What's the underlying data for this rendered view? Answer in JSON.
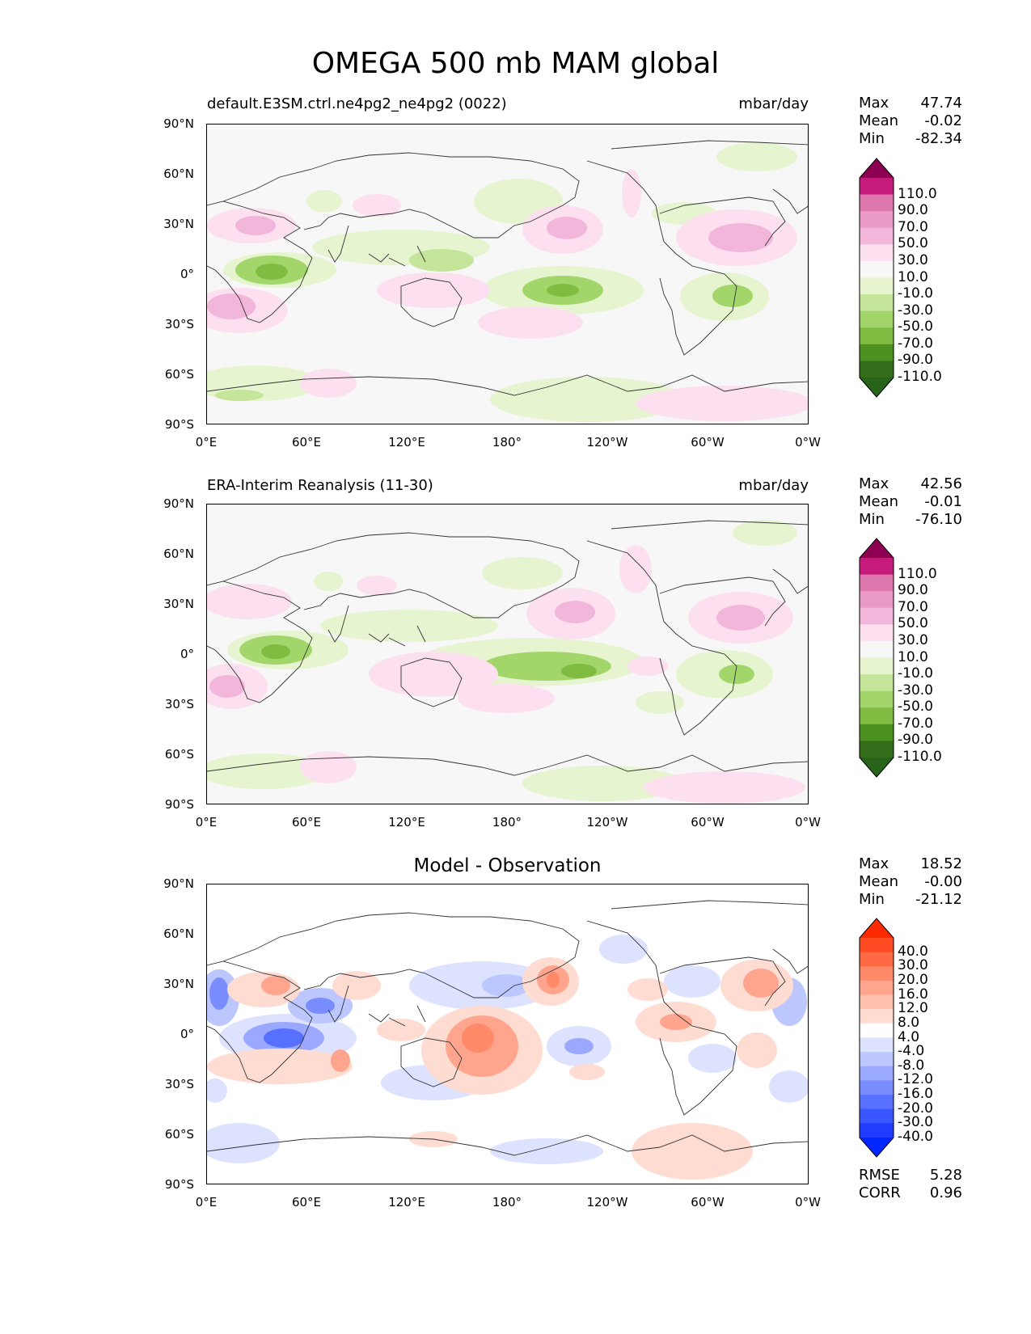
{
  "figure": {
    "title": "OMEGA 500 mb MAM global"
  },
  "lat_ticks": [
    "90°N",
    "60°N",
    "30°N",
    "0°",
    "30°S",
    "60°S",
    "90°S"
  ],
  "lon_ticks": [
    "0°E",
    "60°E",
    "120°E",
    "180°",
    "120°W",
    "60°W",
    "0°W"
  ],
  "panels": [
    {
      "title_left": "default.E3SM.ctrl.ne4pg2_ne4pg2 (0022)",
      "title_right": "mbar/day",
      "title_center": "",
      "stats": {
        "max_label": "Max",
        "max": "47.74",
        "mean_label": "Mean",
        "mean": "-0.02",
        "min_label": "Min",
        "min": "-82.34"
      },
      "colorbar": {
        "labels": [
          "110.0",
          "90.0",
          "70.0",
          "50.0",
          "30.0",
          "10.0",
          "-10.0",
          "-30.0",
          "-50.0",
          "-70.0",
          "-90.0",
          "-110.0"
        ],
        "colors": [
          "#8e0152",
          "#c51b7d",
          "#de77ae",
          "#e99ac7",
          "#f1b6da",
          "#fde0ef",
          "#f7f7f7",
          "#e6f5d0",
          "#c4e59a",
          "#a2d66a",
          "#7fbc41",
          "#4d9221",
          "#356e1a",
          "#276419"
        ]
      }
    },
    {
      "title_left": "ERA-Interim Reanalysis (11-30)",
      "title_right": "mbar/day",
      "title_center": "",
      "stats": {
        "max_label": "Max",
        "max": "42.56",
        "mean_label": "Mean",
        "mean": "-0.01",
        "min_label": "Min",
        "min": "-76.10"
      },
      "colorbar": {
        "labels": [
          "110.0",
          "90.0",
          "70.0",
          "50.0",
          "30.0",
          "10.0",
          "-10.0",
          "-30.0",
          "-50.0",
          "-70.0",
          "-90.0",
          "-110.0"
        ],
        "colors": [
          "#8e0152",
          "#c51b7d",
          "#de77ae",
          "#e99ac7",
          "#f1b6da",
          "#fde0ef",
          "#f7f7f7",
          "#e6f5d0",
          "#c4e59a",
          "#a2d66a",
          "#7fbc41",
          "#4d9221",
          "#356e1a",
          "#276419"
        ]
      }
    },
    {
      "title_left": "",
      "title_right": "",
      "title_center": "Model - Observation",
      "stats": {
        "max_label": "Max",
        "max": "18.52",
        "mean_label": "Mean",
        "mean": "-0.00",
        "min_label": "Min",
        "min": "-21.12"
      },
      "extra_stats": {
        "rmse_label": "RMSE",
        "rmse": "5.28",
        "corr_label": "CORR",
        "corr": "0.96"
      },
      "colorbar": {
        "labels": [
          "40.0",
          "30.0",
          "20.0",
          "16.0",
          "12.0",
          "8.0",
          "4.0",
          "-4.0",
          "-8.0",
          "-12.0",
          "-16.0",
          "-20.0",
          "-30.0",
          "-40.0"
        ],
        "colors": [
          "#ff2a00",
          "#ff4a22",
          "#ff6a45",
          "#ff8a6a",
          "#ffa48d",
          "#ffc0ae",
          "#ffdcd2",
          "#ffffff",
          "#dde2ff",
          "#bcc6ff",
          "#9aa9ff",
          "#7a8dff",
          "#5870ff",
          "#3a56ff",
          "#1f3cff",
          "#0027ff"
        ]
      }
    }
  ]
}
